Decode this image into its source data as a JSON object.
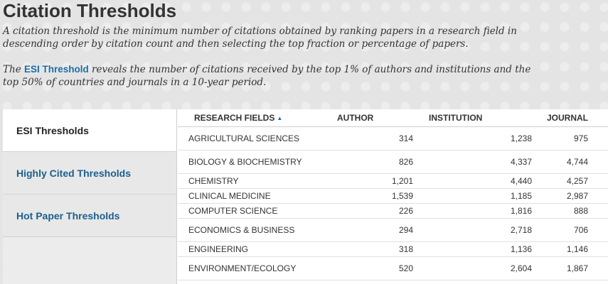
{
  "page": {
    "title": "Citation Thresholds",
    "intro_paragraph_1": "A citation threshold is the minimum number of citations obtained by ranking papers in a research field in descending order by citation count and then selecting the top fraction or percentage of papers.",
    "intro_p2_prefix": "The ",
    "intro_p2_link": "ESI Threshold",
    "intro_p2_suffix": " reveals the number of citations received by the top 1% of authors and institutions and the top 50% of countries and journals in a 10-year period."
  },
  "sidebar": {
    "items": [
      {
        "label": "ESI Thresholds",
        "active": true
      },
      {
        "label": "Highly Cited Thresholds",
        "active": false
      },
      {
        "label": "Hot Paper Thresholds",
        "active": false
      }
    ]
  },
  "table": {
    "headers": {
      "field": "RESEARCH FIELDS",
      "author": "AUTHOR",
      "institution": "INSTITUTION",
      "journal": "JOURNAL"
    },
    "sort_icon": "sort-ascending-icon",
    "rows": [
      {
        "field": "AGRICULTURAL SCIENCES",
        "author": "314",
        "institution": "1,238",
        "journal": "975"
      },
      {
        "field": "BIOLOGY & BIOCHEMISTRY",
        "author": "826",
        "institution": "4,337",
        "journal": "4,744"
      },
      {
        "field": "CHEMISTRY",
        "author": "1,201",
        "institution": "4,440",
        "journal": "4,257"
      },
      {
        "field": "CLINICAL MEDICINE",
        "author": "1,539",
        "institution": "1,185",
        "journal": "2,987"
      },
      {
        "field": "COMPUTER SCIENCE",
        "author": "226",
        "institution": "1,816",
        "journal": "888"
      },
      {
        "field": "ECONOMICS & BUSINESS",
        "author": "294",
        "institution": "2,718",
        "journal": "706"
      },
      {
        "field": "ENGINEERING",
        "author": "318",
        "institution": "1,136",
        "journal": "1,146"
      },
      {
        "field": "ENVIRONMENT/ECOLOGY",
        "author": "520",
        "institution": "2,604",
        "journal": "1,867"
      }
    ]
  },
  "colors": {
    "link": "#1d6ea3",
    "background": "#e4e4e4"
  }
}
